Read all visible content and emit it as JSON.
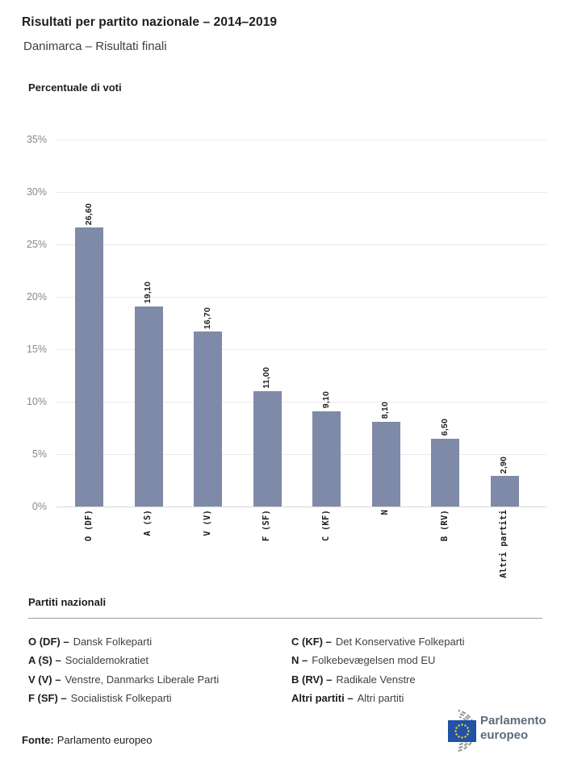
{
  "header": {
    "title": "Risultati per partito nazionale – 2014–2019",
    "subtitle": "Danimarca – Risultati finali"
  },
  "chart_data": {
    "type": "bar",
    "ylabel": "Percentuale di voti",
    "xlabel": "",
    "categories": [
      "O (DF)",
      "A (S)",
      "V (V)",
      "F (SF)",
      "C (KF)",
      "N",
      "B (RV)",
      "Altri partiti"
    ],
    "values": [
      26.6,
      19.1,
      16.7,
      11.0,
      9.1,
      8.1,
      6.5,
      2.9
    ],
    "value_labels": [
      "26,60",
      "19,10",
      "16,70",
      "11,00",
      "9,10",
      "8,10",
      "6,50",
      "2,90"
    ],
    "ylim": [
      0,
      35
    ],
    "ytick_step": 5,
    "ytick_suffix": "%",
    "grid": true,
    "legend_position": "below",
    "bar_color": "#7f8aa8"
  },
  "legend": {
    "title": "Partiti nazionali",
    "columns": [
      [
        {
          "abbr_label": "O (DF) –",
          "name": "Dansk Folkeparti"
        },
        {
          "abbr_label": "A (S) –",
          "name": "Socialdemokratiet"
        },
        {
          "abbr_label": "V (V) –",
          "name": "Venstre, Danmarks Liberale Parti"
        },
        {
          "abbr_label": "F (SF) –",
          "name": "Socialistisk Folkeparti"
        }
      ],
      [
        {
          "abbr_label": "C (KF) –",
          "name": "Det Konservative Folkeparti"
        },
        {
          "abbr_label": "N –",
          "name": "Folkebevægelsen mod EU"
        },
        {
          "abbr_label": "B (RV) –",
          "name": "Radikale Venstre"
        },
        {
          "abbr_label": "Altri partiti –",
          "name": "Altri partiti"
        }
      ]
    ]
  },
  "footer": {
    "source_label": "Fonte:",
    "source_text": "Parlamento europeo",
    "logo_line1": "Parlamento",
    "logo_line2": "europeo"
  },
  "colors": {
    "bar": "#7f8aa8",
    "grid": "#eaeaee",
    "axis_line": "#d8d8dc",
    "tick_text": "#85888f",
    "text_dark": "#1d1d1b",
    "flag_blue": "#2052a5",
    "star_yellow": "#ffd617",
    "hemicycle_gray": "#9a9a9a",
    "logo_text": "#5d6c7b"
  }
}
